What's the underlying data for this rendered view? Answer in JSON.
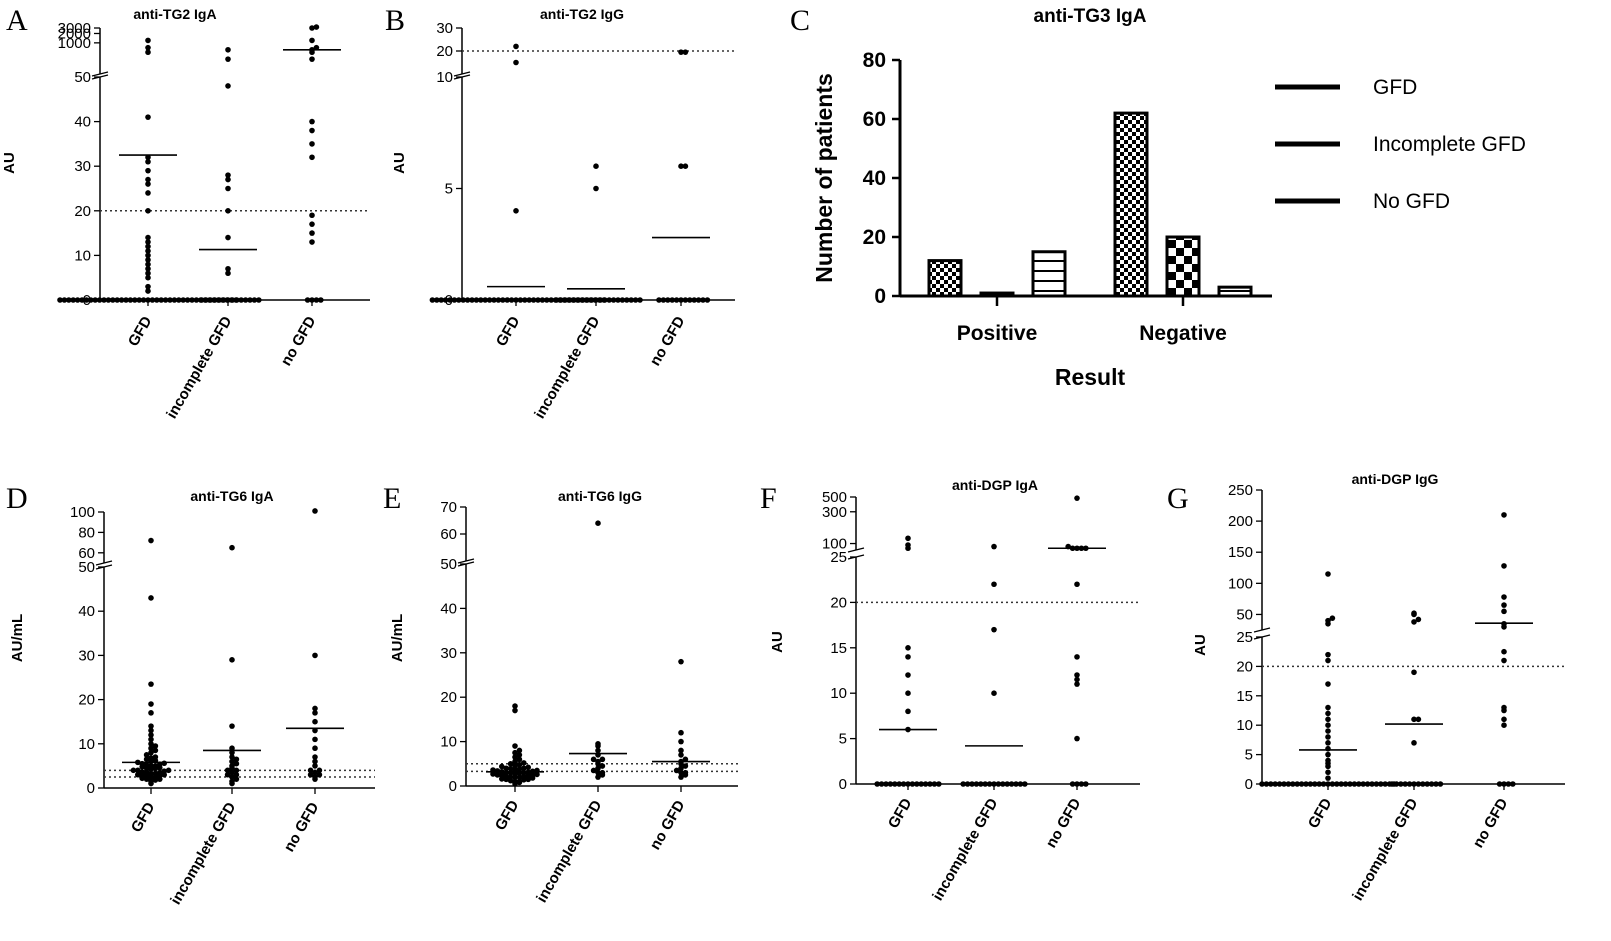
{
  "figure": {
    "panels": [
      {
        "id": "A",
        "title": "anti-TG2 IgA",
        "ylabel": "AU"
      },
      {
        "id": "B",
        "title": "anti-TG2 IgG",
        "ylabel": "AU"
      },
      {
        "id": "C",
        "title": "anti-TG3 IgA",
        "ylabel": "Number of patients",
        "xlabel": "Result"
      },
      {
        "id": "D",
        "title": "anti-TG6 IgA",
        "ylabel": "AU/mL"
      },
      {
        "id": "E",
        "title": "anti-TG6 IgG",
        "ylabel": "AU/mL"
      },
      {
        "id": "F",
        "title": "anti-DGP IgA",
        "ylabel": "AU"
      },
      {
        "id": "G",
        "title": "anti-DGP IgG",
        "ylabel": "AU"
      }
    ],
    "groups": [
      "GFD",
      "incomplete GFD",
      "no GFD"
    ]
  },
  "colors": {
    "ink": "#000000",
    "background": "#ffffff",
    "cutoff": "#333333"
  },
  "chart_data": [
    {
      "id": "A",
      "type": "scatter",
      "title": "anti-TG2 IgA",
      "ylabel": "AU",
      "categories": [
        "GFD",
        "incomplete GFD",
        "no GFD"
      ],
      "y_segments": [
        {
          "range": [
            0,
            50
          ],
          "scale": "linear",
          "ticks": [
            0,
            10,
            20,
            30,
            40,
            50
          ]
        },
        {
          "range": [
            100,
            3000
          ],
          "scale": "log",
          "ticks": [
            1000,
            2000,
            3000
          ]
        }
      ],
      "cutoffs": [
        20
      ],
      "series": [
        {
          "category": "GFD",
          "median": 32.5,
          "values": [
            0,
            0,
            0,
            0,
            0,
            0,
            0,
            0,
            0,
            0,
            0,
            0,
            0,
            0,
            0,
            0,
            0,
            0,
            0,
            0,
            0,
            0,
            0,
            0,
            0,
            0,
            0,
            0,
            0,
            0,
            0,
            0,
            0,
            0,
            0,
            0,
            0,
            0,
            0,
            0,
            0,
            2,
            3,
            5,
            6,
            7,
            8,
            9,
            10,
            11,
            12,
            13,
            14,
            20,
            24,
            26,
            27,
            29,
            31,
            32,
            41,
            500,
            700,
            1200
          ]
        },
        {
          "category": "incomplete GFD",
          "median": 11.3,
          "values": [
            0,
            0,
            0,
            0,
            0,
            0,
            0,
            0,
            0,
            0,
            0,
            0,
            0,
            0,
            6,
            7,
            14,
            20,
            25,
            27,
            28,
            48,
            300,
            600
          ]
        },
        {
          "category": "no GFD",
          "median": 600,
          "values": [
            0,
            0,
            0,
            0,
            13,
            15,
            17,
            19,
            32,
            35,
            38,
            40,
            300,
            500,
            600,
            700,
            1200,
            3000,
            3500
          ]
        }
      ]
    },
    {
      "id": "B",
      "type": "scatter",
      "title": "anti-TG2 IgG",
      "ylabel": "AU",
      "categories": [
        "GFD",
        "incomplete GFD",
        "no GFD"
      ],
      "y_segments": [
        {
          "range": [
            0,
            10
          ],
          "scale": "linear",
          "ticks": [
            0,
            5,
            10
          ]
        },
        {
          "range": [
            10,
            30
          ],
          "scale": "linear",
          "ticks": [
            20,
            30
          ]
        }
      ],
      "cutoffs": [
        20
      ],
      "series": [
        {
          "category": "GFD",
          "median": 0.6,
          "values": [
            0,
            0,
            0,
            0,
            0,
            0,
            0,
            0,
            0,
            0,
            0,
            0,
            0,
            0,
            0,
            0,
            0,
            0,
            0,
            0,
            0,
            0,
            0,
            0,
            0,
            0,
            0,
            0,
            0,
            0,
            0,
            0,
            0,
            0,
            0,
            0,
            0,
            0,
            0,
            0,
            4,
            15,
            22
          ]
        },
        {
          "category": "incomplete GFD",
          "median": 0.5,
          "values": [
            0,
            0,
            0,
            0,
            0,
            0,
            0,
            0,
            0,
            0,
            0,
            0,
            0,
            0,
            0,
            0,
            0,
            0,
            0,
            0,
            5,
            6
          ]
        },
        {
          "category": "no GFD",
          "median": 2.8,
          "values": [
            0,
            0,
            0,
            0,
            0,
            0,
            0,
            0,
            0,
            0,
            0,
            0,
            6,
            6,
            19.5,
            19.5
          ]
        }
      ]
    },
    {
      "id": "C",
      "type": "bar",
      "title": "anti-TG3 IgA",
      "xlabel": "Result",
      "ylabel": "Number of patients",
      "categories": [
        "Positive",
        "Negative"
      ],
      "ylim": [
        0,
        80
      ],
      "yticks": [
        0,
        20,
        40,
        60,
        80
      ],
      "legend": "right",
      "series": [
        {
          "name": "GFD",
          "values": [
            12,
            62
          ]
        },
        {
          "name": "Incomplete GFD",
          "values": [
            1,
            20
          ]
        },
        {
          "name": "No GFD",
          "values": [
            15,
            3
          ]
        }
      ]
    },
    {
      "id": "D",
      "type": "scatter",
      "title": "anti-TG6 IgA",
      "ylabel": "AU/mL",
      "categories": [
        "GFD",
        "incomplete GFD",
        "no GFD"
      ],
      "y_segments": [
        {
          "range": [
            0,
            50
          ],
          "scale": "linear",
          "ticks": [
            0,
            10,
            20,
            30,
            40,
            50
          ]
        },
        {
          "range": [
            50,
            100
          ],
          "scale": "linear",
          "ticks": [
            60,
            80,
            100
          ]
        }
      ],
      "cutoffs": [
        2.5,
        4
      ],
      "series": [
        {
          "category": "GFD",
          "median": 5.8,
          "values": [
            1,
            1.5,
            1.8,
            2,
            2,
            2.2,
            2.4,
            2.5,
            2.6,
            2.8,
            3,
            3,
            3,
            3.2,
            3.3,
            3.5,
            3.5,
            3.6,
            3.8,
            4,
            4,
            4,
            4.2,
            4.4,
            4.5,
            4.6,
            4.8,
            5,
            5,
            5.2,
            5.4,
            5.5,
            5.6,
            5.8,
            6,
            6.2,
            6.5,
            6.8,
            7,
            7.5,
            8,
            8.5,
            9,
            9.5,
            10,
            11,
            12,
            13,
            14,
            17,
            19,
            23.5,
            43,
            72
          ]
        },
        {
          "category": "incomplete GFD",
          "median": 8.5,
          "values": [
            1,
            1.5,
            2,
            2.5,
            3,
            3,
            3.5,
            4,
            4,
            4.5,
            5,
            5.5,
            6,
            6.5,
            7,
            8,
            9,
            14,
            29,
            65
          ]
        },
        {
          "category": "no GFD",
          "median": 13.5,
          "values": [
            2,
            2.5,
            3,
            3,
            3.5,
            4,
            4,
            5,
            6,
            7,
            9,
            11,
            13,
            15,
            17,
            18,
            30,
            102
          ]
        }
      ]
    },
    {
      "id": "E",
      "type": "scatter",
      "title": "anti-TG6 IgG",
      "ylabel": "AU/mL",
      "categories": [
        "GFD",
        "incomplete GFD",
        "no GFD"
      ],
      "y_segments": [
        {
          "range": [
            0,
            50
          ],
          "scale": "linear",
          "ticks": [
            0,
            10,
            20,
            30,
            40,
            50
          ]
        },
        {
          "range": [
            50,
            70
          ],
          "scale": "linear",
          "ticks": [
            60,
            70
          ]
        }
      ],
      "cutoffs": [
        3.3,
        5
      ],
      "series": [
        {
          "category": "GFD",
          "median": 3.2,
          "values": [
            0.5,
            0.8,
            1,
            1,
            1.2,
            1.4,
            1.5,
            1.5,
            1.6,
            1.8,
            2,
            2,
            2,
            2.1,
            2.2,
            2.3,
            2.4,
            2.5,
            2.5,
            2.6,
            2.7,
            2.8,
            2.9,
            3,
            3,
            3,
            3.1,
            3.2,
            3.3,
            3.4,
            3.5,
            3.6,
            3.7,
            3.8,
            3.9,
            4,
            4,
            4.2,
            4.4,
            4.6,
            4.8,
            5,
            5.2,
            5.5,
            6,
            6.5,
            7,
            7.5,
            8,
            9,
            17,
            18
          ]
        },
        {
          "category": "incomplete GFD",
          "median": 7.3,
          "values": [
            2,
            2.5,
            3,
            3,
            3.5,
            4,
            4.5,
            5,
            5.5,
            6,
            6,
            7,
            8,
            9,
            9.5,
            64
          ]
        },
        {
          "category": "no GFD",
          "median": 5.5,
          "values": [
            2,
            2.5,
            3,
            3,
            3.5,
            4,
            4.5,
            5,
            5.5,
            6,
            7,
            8,
            10,
            12,
            28
          ]
        }
      ]
    },
    {
      "id": "F",
      "type": "scatter",
      "title": "anti-DGP IgA",
      "ylabel": "AU",
      "categories": [
        "GFD",
        "incomplete GFD",
        "no GFD"
      ],
      "y_segments": [
        {
          "range": [
            0,
            25
          ],
          "scale": "linear",
          "ticks": [
            0,
            5,
            10,
            15,
            20,
            25
          ]
        },
        {
          "range": [
            80,
            500
          ],
          "scale": "log",
          "ticks": [
            100,
            300,
            500
          ]
        }
      ],
      "cutoffs": [
        20
      ],
      "series": [
        {
          "category": "GFD",
          "median": 6,
          "values": [
            0,
            0,
            0,
            0,
            0,
            0,
            0,
            0,
            0,
            0,
            0,
            0,
            0,
            0,
            0,
            6,
            8,
            10,
            12,
            14,
            15,
            85,
            95,
            120
          ]
        },
        {
          "category": "incomplete GFD",
          "median": 4.2,
          "values": [
            0,
            0,
            0,
            0,
            0,
            0,
            0,
            0,
            0,
            0,
            0,
            0,
            0,
            0,
            0,
            10,
            17,
            22,
            90
          ]
        },
        {
          "category": "no GFD",
          "median": 85,
          "values": [
            0,
            0,
            0,
            0,
            5,
            11,
            11.5,
            12,
            14,
            22,
            85,
            85,
            85,
            85,
            90,
            480
          ]
        }
      ]
    },
    {
      "id": "G",
      "type": "scatter",
      "title": "anti-DGP IgG",
      "ylabel": "AU",
      "categories": [
        "GFD",
        "incomplete GFD",
        "no GFD"
      ],
      "y_segments": [
        {
          "range": [
            0,
            25
          ],
          "scale": "linear",
          "ticks": [
            0,
            5,
            10,
            15,
            20,
            25
          ]
        },
        {
          "range": [
            25,
            250
          ],
          "scale": "linear",
          "ticks": [
            50,
            100,
            150,
            200,
            250
          ]
        }
      ],
      "cutoffs": [
        20
      ],
      "series": [
        {
          "category": "GFD",
          "median": 5.8,
          "values": [
            0,
            0,
            0,
            0,
            0,
            0,
            0,
            0,
            0,
            0,
            0,
            0,
            0,
            0,
            0,
            0,
            0,
            0,
            0,
            0,
            0,
            0,
            0,
            0,
            0,
            0,
            0,
            0,
            0,
            0,
            0,
            1,
            2,
            3,
            3.5,
            4,
            5,
            6,
            7,
            8,
            9,
            10,
            11,
            12,
            13,
            17,
            21,
            22,
            35,
            40,
            44,
            115
          ]
        },
        {
          "category": "incomplete GFD",
          "median": 10.2,
          "values": [
            0,
            0,
            0,
            0,
            0,
            0,
            0,
            0,
            0,
            0,
            0,
            0,
            7,
            11,
            11,
            19,
            38,
            42,
            50,
            52
          ]
        },
        {
          "category": "no GFD",
          "median": 36,
          "values": [
            0,
            0,
            0,
            0,
            10,
            11,
            12.5,
            13,
            21,
            22.5,
            30,
            35,
            55,
            65,
            78,
            128,
            210
          ]
        }
      ]
    }
  ]
}
